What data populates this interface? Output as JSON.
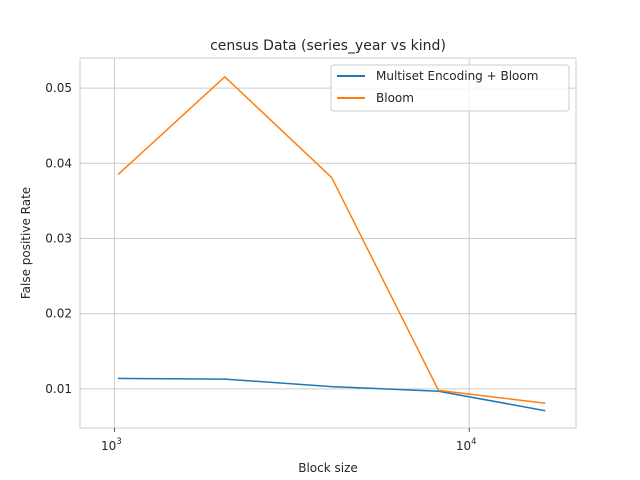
{
  "chart_data": {
    "type": "line",
    "title": "census Data (series_year vs kind)",
    "xlabel": "Block size",
    "ylabel": "False positive Rate",
    "xscale": "log",
    "xlim": [
      800,
      20000
    ],
    "ylim": [
      0.0048,
      0.054
    ],
    "x": [
      1024,
      2048,
      4096,
      8192,
      16384
    ],
    "x_ticks": [
      {
        "value": 1000,
        "base": "10",
        "exp": "3"
      },
      {
        "value": 10000,
        "base": "10",
        "exp": "4"
      }
    ],
    "y_ticks": [
      0.01,
      0.02,
      0.03,
      0.04,
      0.05
    ],
    "y_tick_labels": [
      "0.01",
      "0.02",
      "0.03",
      "0.04",
      "0.05"
    ],
    "grid": true,
    "legend_position": "top-right",
    "series": [
      {
        "name": "Multiset Encoding + Bloom",
        "color": "#1f77b4",
        "values": [
          0.0114,
          0.0113,
          0.0103,
          0.0097,
          0.0071
        ]
      },
      {
        "name": "Bloom",
        "color": "#ff7f0e",
        "values": [
          0.0385,
          0.0515,
          0.0381,
          0.0098,
          0.0081
        ]
      }
    ]
  }
}
